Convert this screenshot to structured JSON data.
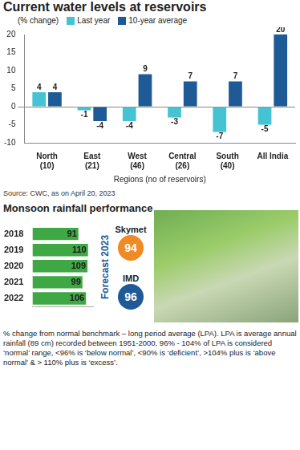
{
  "chart_data": [
    {
      "type": "bar",
      "title": "Current water levels at reservoirs",
      "subtitle": "(% change)",
      "x_label": "Regions (no of reservoirs)",
      "source": "Source: CWC, as on April 20, 2023",
      "categories": [
        "North (10)",
        "East (21)",
        "West (46)",
        "Central (26)",
        "South (40)",
        "All India"
      ],
      "series": [
        {
          "name": "Last year",
          "color": "#45c3d3",
          "values": [
            4,
            -1,
            -4,
            -3,
            -7,
            -5
          ]
        },
        {
          "name": "10-year average",
          "color": "#1e5a96",
          "values": [
            4,
            -4,
            9,
            7,
            7,
            20
          ]
        }
      ],
      "ylim": [
        -10,
        20
      ],
      "yticks": [
        -10,
        -5,
        0,
        5,
        10,
        15,
        20
      ],
      "grid": false,
      "legend": "top",
      "data_labels": true
    },
    {
      "type": "bar",
      "title": "Monsoon rainfall performance",
      "orientation": "horizontal",
      "categories": [
        "2018",
        "2019",
        "2020",
        "2021",
        "2022"
      ],
      "values": [
        91,
        110,
        109,
        99,
        106
      ],
      "color": "#3fa845",
      "xlim": [
        0,
        120
      ],
      "xticks": [],
      "grid": false,
      "tick_labels": "y",
      "data_labels": true
    }
  ],
  "forecast": {
    "title": "Forecast 2023",
    "items": [
      {
        "name": "Skymet",
        "value": 94,
        "color": "#f08a24"
      },
      {
        "name": "IMD",
        "value": 96,
        "color": "#1e5a96"
      }
    ]
  },
  "footnote": "% change from normal benchmark – long period average (LPA). LPA is average annual rainfall (89 cm) recorded between 1951-2000, 96% - 104% of LPA is considered ‘normal’ range, <96% is ‘below normal’, <90% is ‘deficient’, >104% plus is ‘above normal’ & > 110% plus is ‘excess’."
}
